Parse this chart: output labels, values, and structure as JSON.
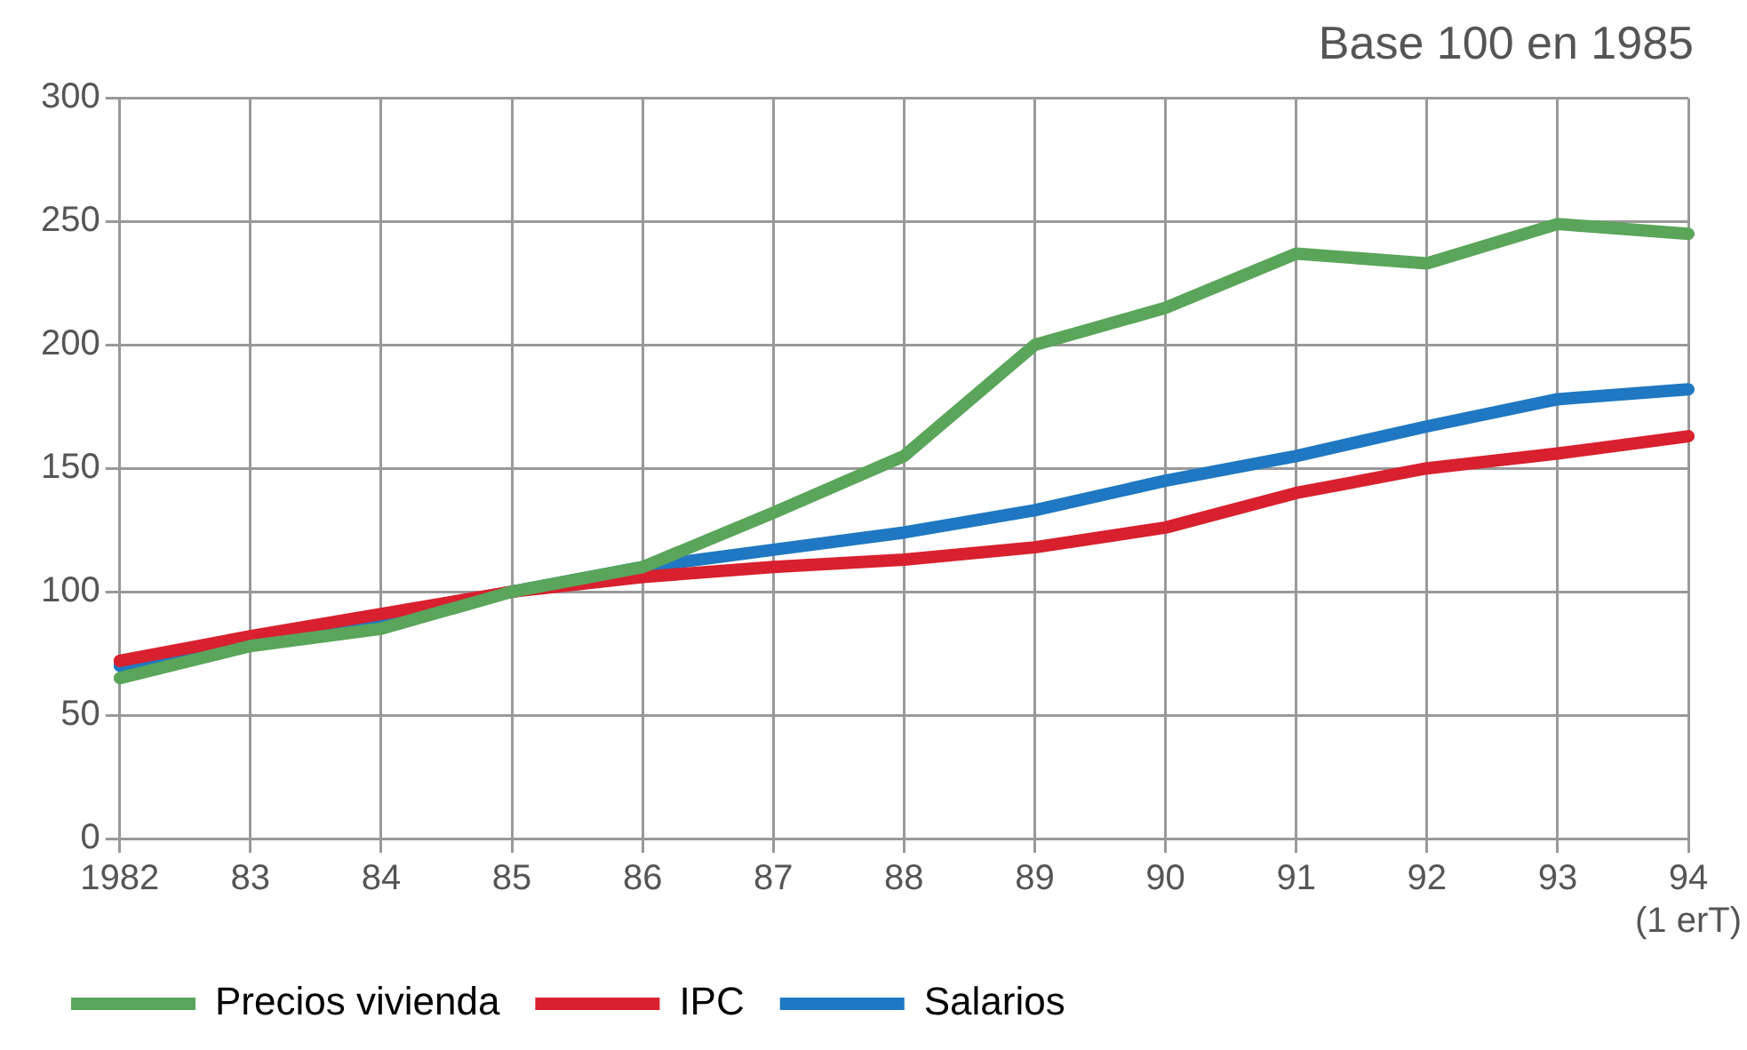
{
  "chart_data": {
    "type": "line",
    "title": "Base 100 en 1985",
    "categories": [
      "1982",
      "83",
      "84",
      "85",
      "86",
      "87",
      "88",
      "89",
      "90",
      "91",
      "92",
      "93",
      "94\n(1 erT)"
    ],
    "series": [
      {
        "name": "Precios vivienda",
        "color": "#5aa55a",
        "values": [
          65,
          78,
          85,
          100,
          110,
          132,
          155,
          200,
          215,
          237,
          233,
          249,
          245
        ]
      },
      {
        "name": "IPC",
        "color": "#d8202e",
        "values": [
          72,
          82,
          91,
          100,
          106,
          110,
          113,
          118,
          126,
          140,
          150,
          156,
          163
        ]
      },
      {
        "name": "Salarios",
        "color": "#1f78c1",
        "values": [
          70,
          80,
          90,
          100,
          110,
          117,
          124,
          133,
          145,
          155,
          167,
          178,
          182
        ]
      }
    ],
    "ylim": [
      0,
      300
    ],
    "yticks": [
      0,
      50,
      100,
      150,
      200,
      250,
      300
    ],
    "grid": true,
    "legend": "bottom",
    "marker": "none",
    "line_style": "solid"
  }
}
